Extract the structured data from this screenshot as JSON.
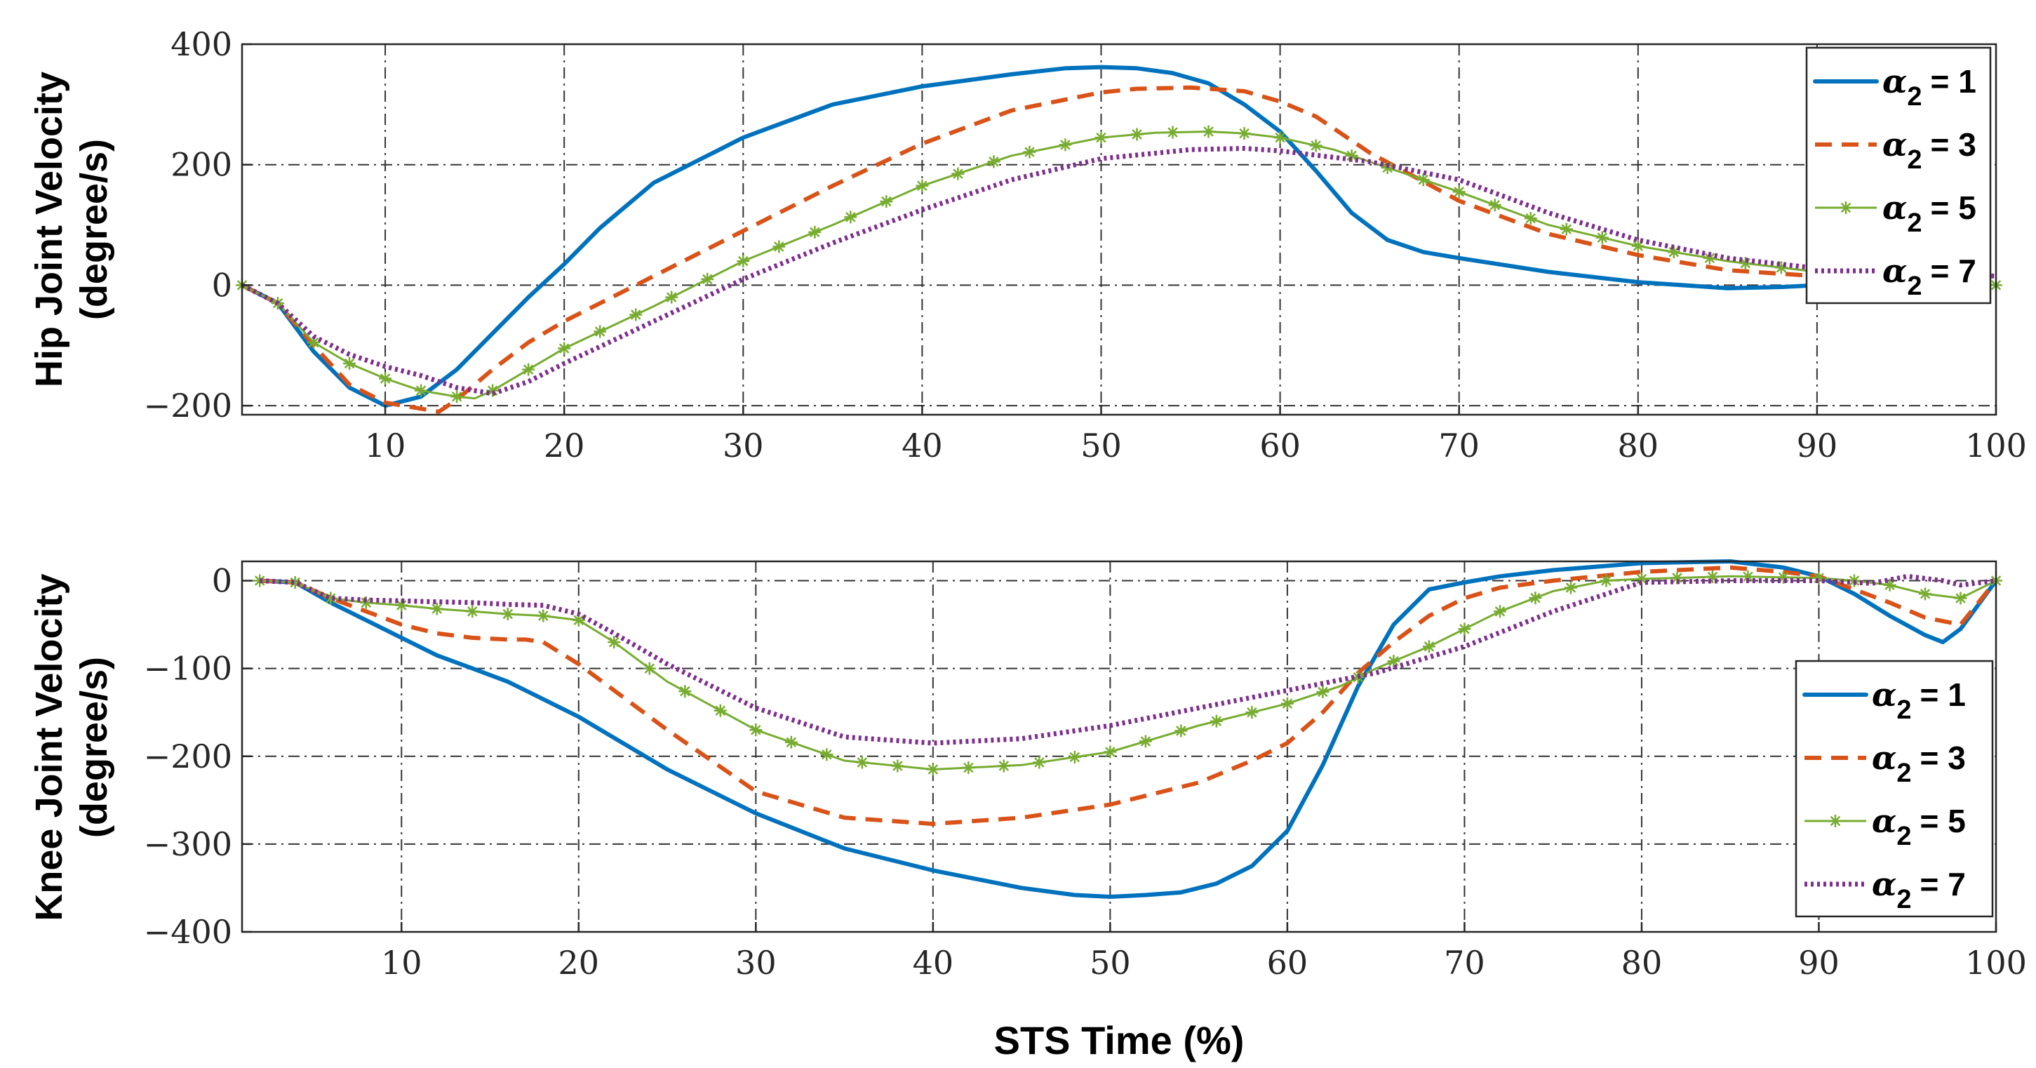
{
  "figure": {
    "xlabel": "STS Time (%)"
  },
  "colors": {
    "a1": "#0072BD",
    "a3": "#D95319",
    "a5": "#77AC30",
    "a7": "#7E2F8E"
  },
  "chart_data": [
    {
      "type": "line",
      "ylabel_line1": "Hip Joint Velocity",
      "ylabel_line2": "(degree/s)",
      "xlim": [
        2,
        100
      ],
      "ylim": [
        -215,
        400
      ],
      "xticks": [
        10,
        20,
        30,
        40,
        50,
        60,
        70,
        80,
        90,
        100
      ],
      "yticks": [
        400,
        200,
        0,
        -200
      ],
      "xtick_labels": [
        "10",
        "20",
        "30",
        "40",
        "50",
        "60",
        "70",
        "80",
        "90",
        "100"
      ],
      "ytick_labels": [
        "400",
        "200",
        "0",
        "−200"
      ],
      "legend_position": "top-right",
      "series": [
        {
          "name": "α₂ = 1",
          "alpha": "α",
          "sub": "2",
          "eq": "= 1",
          "color_key": "a1",
          "style": "solid",
          "x": [
            2,
            4,
            6,
            8,
            10,
            12,
            14,
            16,
            18,
            20,
            22,
            25,
            30,
            35,
            40,
            45,
            48,
            50,
            52,
            54,
            56,
            58,
            60,
            62,
            64,
            66,
            68,
            70,
            75,
            80,
            85,
            88,
            90
          ],
          "y": [
            0,
            -30,
            -110,
            -170,
            -200,
            -185,
            -140,
            -80,
            -20,
            35,
            95,
            170,
            245,
            300,
            330,
            350,
            360,
            362,
            360,
            352,
            335,
            300,
            255,
            190,
            120,
            75,
            55,
            45,
            22,
            5,
            -5,
            -3,
            0
          ]
        },
        {
          "name": "α₂ = 3",
          "alpha": "α",
          "sub": "2",
          "eq": "= 3",
          "color_key": "a3",
          "style": "dash",
          "x": [
            2,
            4,
            6,
            8,
            10,
            11,
            12,
            13,
            14,
            16,
            18,
            20,
            25,
            30,
            35,
            40,
            45,
            50,
            52,
            55,
            58,
            60,
            62,
            65,
            70,
            75,
            80,
            85,
            90
          ],
          "y": [
            0,
            -30,
            -100,
            -165,
            -195,
            -200,
            -205,
            -210,
            -190,
            -140,
            -95,
            -60,
            15,
            90,
            165,
            235,
            290,
            320,
            326,
            328,
            322,
            305,
            280,
            220,
            140,
            85,
            50,
            25,
            15
          ]
        },
        {
          "name": "α₂ = 5",
          "alpha": "α",
          "sub": "2",
          "eq": "= 5",
          "color_key": "a5",
          "style": "star",
          "x": [
            2,
            4,
            6,
            8,
            10,
            12,
            14,
            15,
            16,
            18,
            20,
            25,
            30,
            35,
            40,
            45,
            50,
            53,
            56,
            58,
            60,
            63,
            66,
            70,
            75,
            80,
            85,
            90,
            95,
            100
          ],
          "y": [
            0,
            -30,
            -95,
            -130,
            -155,
            -175,
            -185,
            -188,
            -175,
            -140,
            -105,
            -35,
            40,
            100,
            165,
            215,
            245,
            253,
            255,
            252,
            245,
            225,
            195,
            155,
            100,
            65,
            40,
            22,
            12,
            0
          ]
        },
        {
          "name": "α₂ = 7",
          "alpha": "α",
          "sub": "2",
          "eq": "= 7",
          "color_key": "a7",
          "style": "dot",
          "x": [
            2,
            4,
            6,
            8,
            10,
            12,
            14,
            16,
            18,
            20,
            25,
            30,
            35,
            40,
            45,
            50,
            55,
            58,
            60,
            65,
            70,
            75,
            80,
            85,
            90,
            95,
            100
          ],
          "y": [
            0,
            -30,
            -85,
            -115,
            -135,
            -150,
            -170,
            -180,
            -160,
            -130,
            -60,
            10,
            70,
            125,
            175,
            210,
            225,
            227,
            223,
            205,
            175,
            120,
            75,
            45,
            28,
            20,
            15
          ]
        }
      ]
    },
    {
      "type": "line",
      "ylabel_line1": "Knee Joint Velocity",
      "ylabel_line2": "(degree/s)",
      "xlim": [
        1,
        100
      ],
      "ylim": [
        -400,
        22
      ],
      "xticks": [
        10,
        20,
        30,
        40,
        50,
        60,
        70,
        80,
        90,
        100
      ],
      "yticks": [
        0,
        -100,
        -200,
        -300,
        -400
      ],
      "xtick_labels": [
        "10",
        "20",
        "30",
        "40",
        "50",
        "60",
        "70",
        "80",
        "90",
        "100"
      ],
      "ytick_labels": [
        "0",
        "−100",
        "−200",
        "−300",
        "−400"
      ],
      "legend_position": "bottom-right",
      "series": [
        {
          "name": "α₂ = 1",
          "alpha": "α",
          "sub": "2",
          "eq": "= 1",
          "color_key": "a1",
          "style": "solid",
          "x": [
            2,
            4,
            6,
            8,
            10,
            12,
            14,
            16,
            18,
            20,
            25,
            30,
            35,
            40,
            45,
            48,
            50,
            52,
            54,
            56,
            58,
            60,
            62,
            64,
            66,
            68,
            70,
            72,
            75,
            80,
            85,
            88,
            90,
            92,
            94,
            96,
            97,
            98,
            100
          ],
          "y": [
            0,
            -2,
            -25,
            -45,
            -65,
            -85,
            -100,
            -115,
            -135,
            -155,
            -215,
            -265,
            -305,
            -330,
            -350,
            -358,
            -360,
            -358,
            -355,
            -345,
            -325,
            -285,
            -210,
            -120,
            -50,
            -10,
            -2,
            5,
            12,
            20,
            22,
            15,
            5,
            -15,
            -40,
            -62,
            -70,
            -55,
            0
          ]
        },
        {
          "name": "α₂ = 3",
          "alpha": "α",
          "sub": "2",
          "eq": "= 3",
          "color_key": "a3",
          "style": "dash",
          "x": [
            2,
            4,
            6,
            8,
            10,
            12,
            14,
            16,
            17,
            18,
            20,
            25,
            30,
            35,
            40,
            45,
            50,
            55,
            58,
            60,
            62,
            64,
            66,
            68,
            70,
            72,
            75,
            80,
            85,
            88,
            90,
            92,
            94,
            96,
            98,
            100
          ],
          "y": [
            0,
            -2,
            -20,
            -35,
            -50,
            -60,
            -65,
            -67,
            -67,
            -70,
            -95,
            -170,
            -240,
            -270,
            -277,
            -270,
            -255,
            -230,
            -205,
            -185,
            -150,
            -105,
            -70,
            -40,
            -20,
            -8,
            0,
            10,
            15,
            10,
            5,
            -10,
            -25,
            -42,
            -50,
            0
          ]
        },
        {
          "name": "α₂ = 5",
          "alpha": "α",
          "sub": "2",
          "eq": "= 5",
          "color_key": "a5",
          "style": "star",
          "x": [
            2,
            4,
            6,
            8,
            10,
            12,
            14,
            16,
            18,
            20,
            22,
            25,
            30,
            35,
            40,
            45,
            50,
            55,
            60,
            63,
            65,
            68,
            70,
            72,
            75,
            78,
            80,
            85,
            90,
            92,
            94,
            96,
            98,
            100
          ],
          "y": [
            0,
            -2,
            -20,
            -25,
            -28,
            -32,
            -35,
            -38,
            -40,
            -45,
            -70,
            -115,
            -170,
            -205,
            -215,
            -210,
            -195,
            -165,
            -140,
            -120,
            -100,
            -75,
            -55,
            -35,
            -12,
            0,
            2,
            5,
            3,
            0,
            -5,
            -15,
            -20,
            0
          ]
        },
        {
          "name": "α₂ = 7",
          "alpha": "α",
          "sub": "2",
          "eq": "= 7",
          "color_key": "a7",
          "style": "dot",
          "x": [
            2,
            4,
            6,
            8,
            10,
            12,
            14,
            16,
            18,
            20,
            22,
            25,
            30,
            35,
            40,
            45,
            50,
            55,
            60,
            65,
            70,
            75,
            80,
            85,
            90,
            93,
            95,
            97,
            98,
            100
          ],
          "y": [
            0,
            -2,
            -20,
            -22,
            -23,
            -24,
            -25,
            -27,
            -28,
            -38,
            -60,
            -95,
            -145,
            -178,
            -185,
            -180,
            -165,
            -145,
            -125,
            -105,
            -75,
            -35,
            -2,
            0,
            0,
            -3,
            5,
            0,
            -5,
            0
          ]
        }
      ]
    }
  ]
}
